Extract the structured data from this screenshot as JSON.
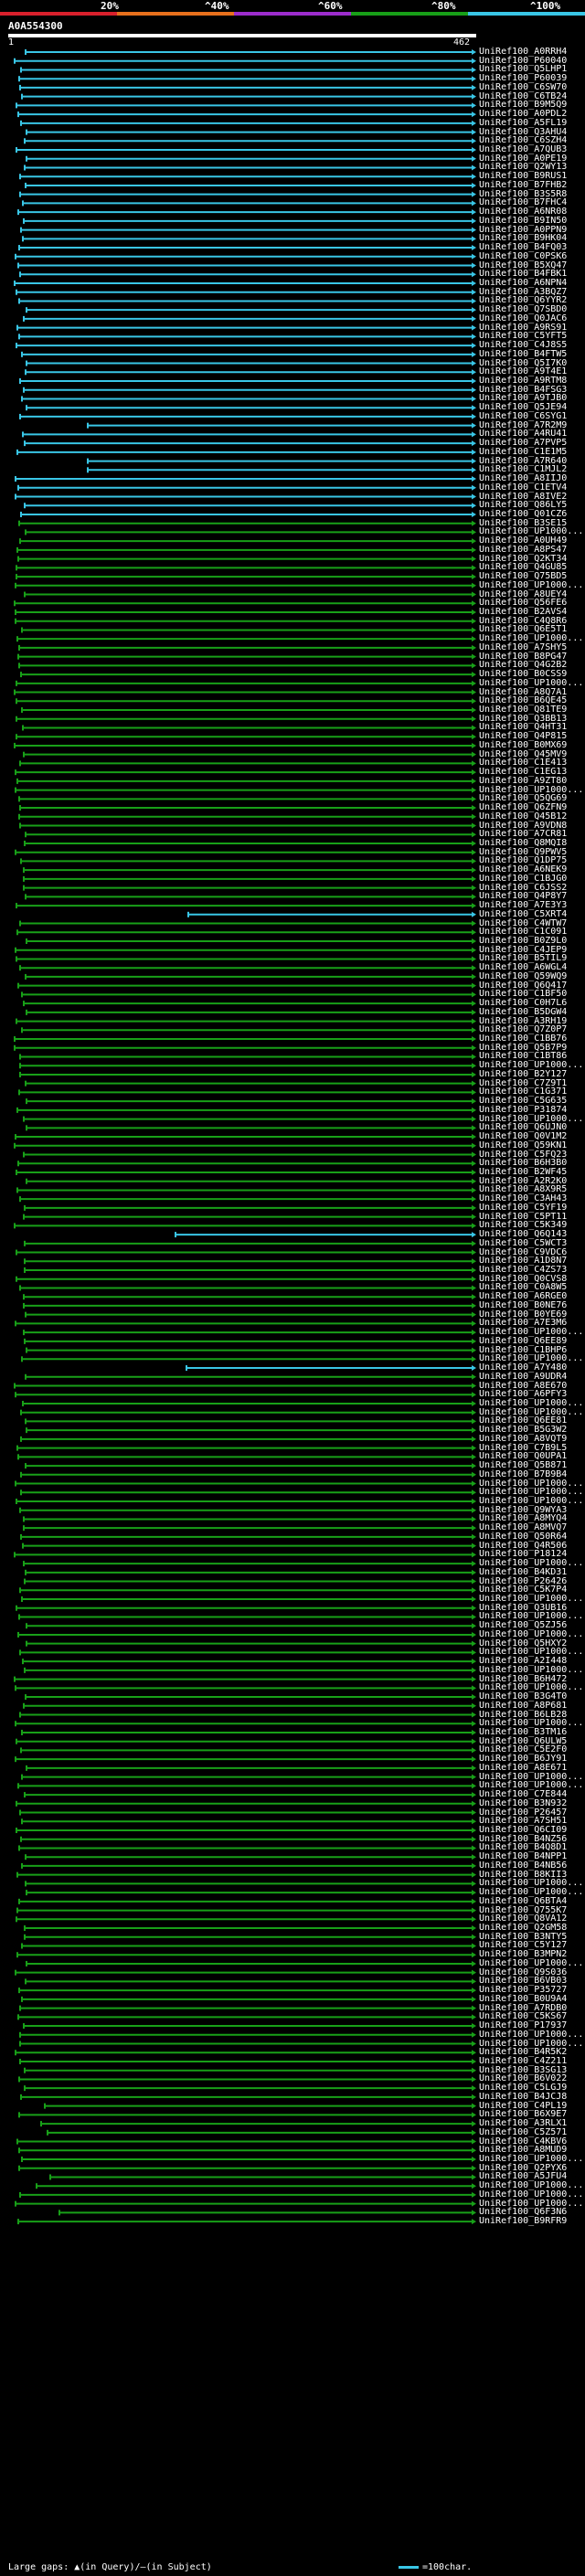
{
  "query": {
    "id": "A0A554300",
    "start": "1",
    "end": "462"
  },
  "legend": {
    "labels": [
      "20%",
      "^40%",
      "^60%",
      "^80%",
      "^100%"
    ],
    "colors": [
      "#d8202c",
      "#e8701c",
      "#9c2ccc",
      "#18a018",
      "#39c6e6"
    ]
  },
  "footer": {
    "text": "Large gaps: ▲(in Query)/—(in Subject)",
    "scale_label": "=100char."
  },
  "hits": [
    "UniRef100_A0RRH4",
    "UniRef100_P60040",
    "UniRef100_Q5LHP1",
    "UniRef100_P60039",
    "UniRef100_C6SW70",
    "UniRef100_C6TB24",
    "UniRef100_B9M5Q9",
    "UniRef100_A0PDL2",
    "UniRef100_A5FL19",
    "UniRef100_Q3AHU4",
    "UniRef100_C6SZH4",
    "UniRef100_A7QUB3",
    "UniRef100_A0PE19",
    "UniRef100_Q2WY13",
    "UniRef100_B9RUS1",
    "UniRef100_B7FHB2",
    "UniRef100_B3S5R8",
    "UniRef100_B7FHC4",
    "UniRef100_A6NR08",
    "UniRef100_B9IN50",
    "UniRef100_A0PPN9",
    "UniRef100_B9HK04",
    "UniRef100_B4FQ03",
    "UniRef100_C0PSK6",
    "UniRef100_B5XQ47",
    "UniRef100_B4FBK1",
    "UniRef100_A6NPN4",
    "UniRef100_A3BQZ7",
    "UniRef100_Q6YYR2",
    "UniRef100_Q7SBD0",
    "UniRef100_Q0JAC6",
    "UniRef100_A9RS91",
    "UniRef100_C5YFT5",
    "UniRef100_C4J8S5",
    "UniRef100_B4FTW5",
    "UniRef100_Q5I7K0",
    "UniRef100_A9T4E1",
    "UniRef100_A9RTM8",
    "UniRef100_B4FSG3",
    "UniRef100_A9TJB0",
    "UniRef100_Q5JE94",
    "UniRef100_C6SYG1",
    "UniRef100_A7R2M9",
    "UniRef100_A4RU41",
    "UniRef100_A7PVP5",
    "UniRef100_C1E1M5",
    "UniRef100_A7R640",
    "UniRef100_C1MJL2",
    "UniRef100_A8IIJ0",
    "UniRef100_C1ETV4",
    "UniRef100_A8IVE2",
    "UniRef100_Q86LY5",
    "UniRef100_Q01CZ6",
    "UniRef100_B3SE15",
    "UniRef100_UP1000...",
    "UniRef100_A0UH49",
    "UniRef100_A8PS47",
    "UniRef100_Q2KT34",
    "UniRef100_Q4GU85",
    "UniRef100_Q75BD5",
    "UniRef100_UP1000...",
    "UniRef100_A8UEY4",
    "UniRef100_Q56FE6",
    "UniRef100_B2AVS4",
    "UniRef100_C4Q8R6",
    "UniRef100_Q6E5T1",
    "UniRef100_UP1000...",
    "UniRef100_A7SHY5",
    "UniRef100_B8PG47",
    "UniRef100_Q4G2B2",
    "UniRef100_B0CSS9",
    "UniRef100_UP1000...",
    "UniRef100_A8Q7A1",
    "UniRef100_B6QE45",
    "UniRef100_Q81TE9",
    "UniRef100_Q3BB13",
    "UniRef100_Q4HT31",
    "UniRef100_Q4P815",
    "UniRef100_B0MX69",
    "UniRef100_Q45MV9",
    "UniRef100_C1E413",
    "UniRef100_C1EG13",
    "UniRef100_A9ZT80",
    "UniRef100_UP1000...",
    "UniRef100_Q5QG69",
    "UniRef100_Q6ZFN9",
    "UniRef100_Q45B12",
    "UniRef100_A9VDN8",
    "UniRef100_A7CR81",
    "UniRef100_Q8MQI8",
    "UniRef100_Q9PWV5",
    "UniRef100_Q1DP75",
    "UniRef100_A6NEK9",
    "UniRef100_C1BJG0",
    "UniRef100_C6JSS2",
    "UniRef100_Q4P8Y7",
    "UniRef100_A7E3Y3",
    "UniRef100_C5XRT4",
    "UniRef100_C4WTW7",
    "UniRef100_C1C091",
    "UniRef100_B0Z9L0",
    "UniRef100_C4JEP9",
    "UniRef100_B5TIL9",
    "UniRef100_A6WGL4",
    "UniRef100_Q59WQ9",
    "UniRef100_Q6Q417",
    "UniRef100_C1BF50",
    "UniRef100_C0H7L6",
    "UniRef100_B5DGW4",
    "UniRef100_A3RH19",
    "UniRef100_Q7Z0P7",
    "UniRef100_C1BB76",
    "UniRef100_Q5B7P9",
    "UniRef100_C1BT86",
    "UniRef100_UP1000...",
    "UniRef100_B2Y127",
    "UniRef100_C7Z9T1",
    "UniRef100_C1G371",
    "UniRef100_C5G635",
    "UniRef100_P31874",
    "UniRef100_UP1000...",
    "UniRef100_Q6UJN0",
    "UniRef100_Q0V1M2",
    "UniRef100_Q59KN1",
    "UniRef100_C5FQ23",
    "UniRef100_B6H3B0",
    "UniRef100_B2WF45",
    "UniRef100_A2R2K0",
    "UniRef100_A8X9R5",
    "UniRef100_C3AH43",
    "UniRef100_C5YF19",
    "UniRef100_C5PT11",
    "UniRef100_C5K349",
    "UniRef100_Q6Q143",
    "UniRef100_C5WCT3",
    "UniRef100_C9VDC6",
    "UniRef100_A1D8N7",
    "UniRef100_C4ZS73",
    "UniRef100_Q0CVS8",
    "UniRef100_C0A8W5",
    "UniRef100_A6RGE0",
    "UniRef100_B0NE76",
    "UniRef100_B0YE69",
    "UniRef100_A7E3M6",
    "UniRef100_UP1000...",
    "UniRef100_Q6EE89",
    "UniRef100_C1BHP6",
    "UniRef100_UP1000...",
    "UniRef100_A7Y480",
    "UniRef100_A9UDR4",
    "UniRef100_A8E670",
    "UniRef100_A6PFY3",
    "UniRef100_UP1000...",
    "UniRef100_UP1000...",
    "UniRef100_Q6EE81",
    "UniRef100_B5G3W2",
    "UniRef100_A8VQT9",
    "UniRef100_C7B9L5",
    "UniRef100_Q0UPA1",
    "UniRef100_Q5B871",
    "UniRef100_B7B9B4",
    "UniRef100_UP1000...",
    "UniRef100_UP1000...",
    "UniRef100_UP1000...",
    "UniRef100_Q9WYA3",
    "UniRef100_A8MYQ4",
    "UniRef100_A8MVQ7",
    "UniRef100_Q50R64",
    "UniRef100_Q4R506",
    "UniRef100_P18124",
    "UniRef100_UP1000...",
    "UniRef100_B4KD31",
    "UniRef100_P26426",
    "UniRef100_C5K7P4",
    "UniRef100_UP1000...",
    "UniRef100_Q3UB16",
    "UniRef100_UP1000...",
    "UniRef100_Q5ZJ56",
    "UniRef100_UP1000...",
    "UniRef100_Q5HXY2",
    "UniRef100_UP1000...",
    "UniRef100_A2I448",
    "UniRef100_UP1000...",
    "UniRef100_B6H472",
    "UniRef100_UP1000...",
    "UniRef100_B3G4T0",
    "UniRef100_A8P681",
    "UniRef100_B6LB28",
    "UniRef100_UP1000...",
    "UniRef100_B3TM16",
    "UniRef100_Q6ULW5",
    "UniRef100_C5E2F0",
    "UniRef100_B6JY91",
    "UniRef100_A8E671",
    "UniRef100_UP1000...",
    "UniRef100_UP1000...",
    "UniRef100_C7E844",
    "UniRef100_B3N932",
    "UniRef100_P26457",
    "UniRef100_A7SH51",
    "UniRef100_Q6CI09",
    "UniRef100_B4NZ56",
    "UniRef100_B4Q8D1",
    "UniRef100_B4NPP1",
    "UniRef100_B4NB56",
    "UniRef100_B8KII3",
    "UniRef100_UP1000...",
    "UniRef100_UP1000...",
    "UniRef100_Q6BTA4",
    "UniRef100_Q755K7",
    "UniRef100_Q8VA12",
    "UniRef100_Q2GM58",
    "UniRef100_B3NTY5",
    "UniRef100_C5Y127",
    "UniRef100_B3MPN2",
    "UniRef100_UP1000...",
    "UniRef100_Q9S036",
    "UniRef100_B6VB03",
    "UniRef100_P35727",
    "UniRef100_B0U9A4",
    "UniRef100_A7RDB0",
    "UniRef100_C5KS67",
    "UniRef100_P17937",
    "UniRef100_UP1000...",
    "UniRef100_UP1000...",
    "UniRef100_B4R5K2",
    "UniRef100_C4Z211",
    "UniRef100_B3SG13",
    "UniRef100_B6V022",
    "UniRef100_C5LGJ9",
    "UniRef100_B4JCJ8",
    "UniRef100_C4PL19",
    "UniRef100_B6X9E7",
    "UniRef100_A3RLX1",
    "UniRef100_C5Z571",
    "UniRef100_C4KBV6",
    "UniRef100_A8MUD9",
    "UniRef100_UP1000...",
    "UniRef100_Q2PYX6",
    "UniRef100_A5JFU4",
    "UniRef100_UP1000...",
    "UniRef100_UP1000...",
    "UniRef100_UP1000...",
    "UniRef100_Q6F3N6",
    "UniRef100_B9RFR9"
  ]
}
